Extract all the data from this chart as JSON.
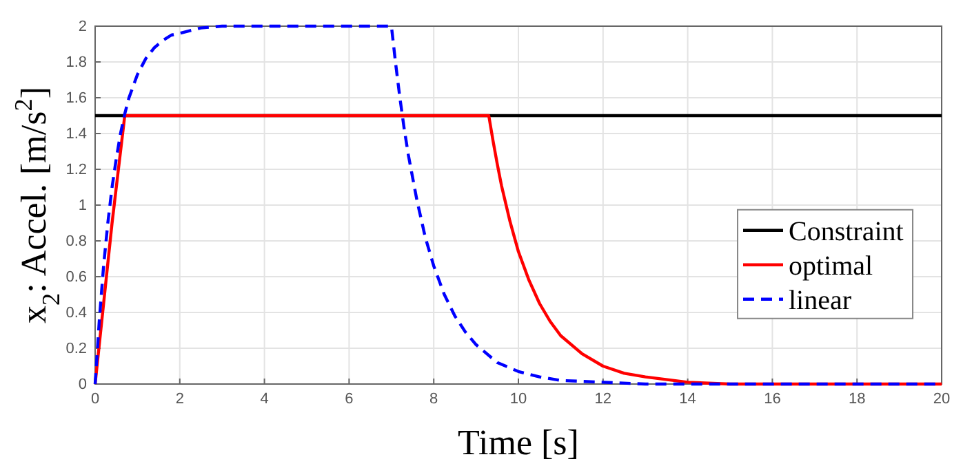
{
  "chart_data": {
    "type": "line",
    "xlabel": "Time [s]",
    "ylabel": "x$_{2}$: Accel. [m/s$^{2}$]",
    "xlim": [
      0,
      20
    ],
    "xticks": [
      0,
      2,
      4,
      6,
      8,
      10,
      12,
      14,
      16,
      18,
      20
    ],
    "ylim": [
      0,
      2
    ],
    "yticks": [
      0,
      0.2,
      0.4,
      0.6,
      0.8,
      1,
      1.2,
      1.4,
      1.6,
      1.8,
      2
    ],
    "grid": true,
    "legend": "right",
    "marker": "none",
    "series": [
      {
        "name": "Constraint",
        "color": "#000000",
        "line_style": "solid",
        "x": [
          0,
          20
        ],
        "values": [
          1.5,
          1.5
        ]
      },
      {
        "name": "optimal",
        "color": "#ff0000",
        "line_style": "solid",
        "x": [
          0,
          0.2,
          0.4,
          0.6,
          0.7,
          9.3,
          9.4,
          9.5,
          9.6,
          9.8,
          10,
          10.25,
          10.5,
          10.75,
          11,
          11.5,
          12,
          12.5,
          13,
          14,
          15,
          16,
          20
        ],
        "values": [
          0,
          0.45,
          0.9,
          1.3,
          1.5,
          1.5,
          1.36,
          1.23,
          1.11,
          0.91,
          0.74,
          0.58,
          0.45,
          0.35,
          0.27,
          0.17,
          0.1,
          0.06,
          0.04,
          0.01,
          0,
          0,
          0
        ]
      },
      {
        "name": "linear",
        "color": "#0000ff",
        "line_style": "dashed",
        "x": [
          0,
          0.1,
          0.2,
          0.3,
          0.4,
          0.5,
          0.6,
          0.7,
          0.8,
          1,
          1.2,
          1.4,
          1.6,
          1.8,
          2,
          2.5,
          3,
          7,
          7.1,
          7.2,
          7.3,
          7.4,
          7.6,
          7.8,
          8,
          8.25,
          8.5,
          8.75,
          9,
          9.5,
          10,
          10.5,
          11,
          12,
          13,
          14,
          16,
          20
        ],
        "values": [
          0,
          0.36,
          0.66,
          0.9,
          1.1,
          1.26,
          1.4,
          1.51,
          1.6,
          1.73,
          1.82,
          1.88,
          1.92,
          1.95,
          1.96,
          1.99,
          2,
          2,
          1.79,
          1.6,
          1.43,
          1.28,
          1.03,
          0.82,
          0.66,
          0.5,
          0.38,
          0.29,
          0.22,
          0.12,
          0.07,
          0.04,
          0.02,
          0.01,
          0,
          0,
          0,
          0
        ]
      }
    ]
  }
}
